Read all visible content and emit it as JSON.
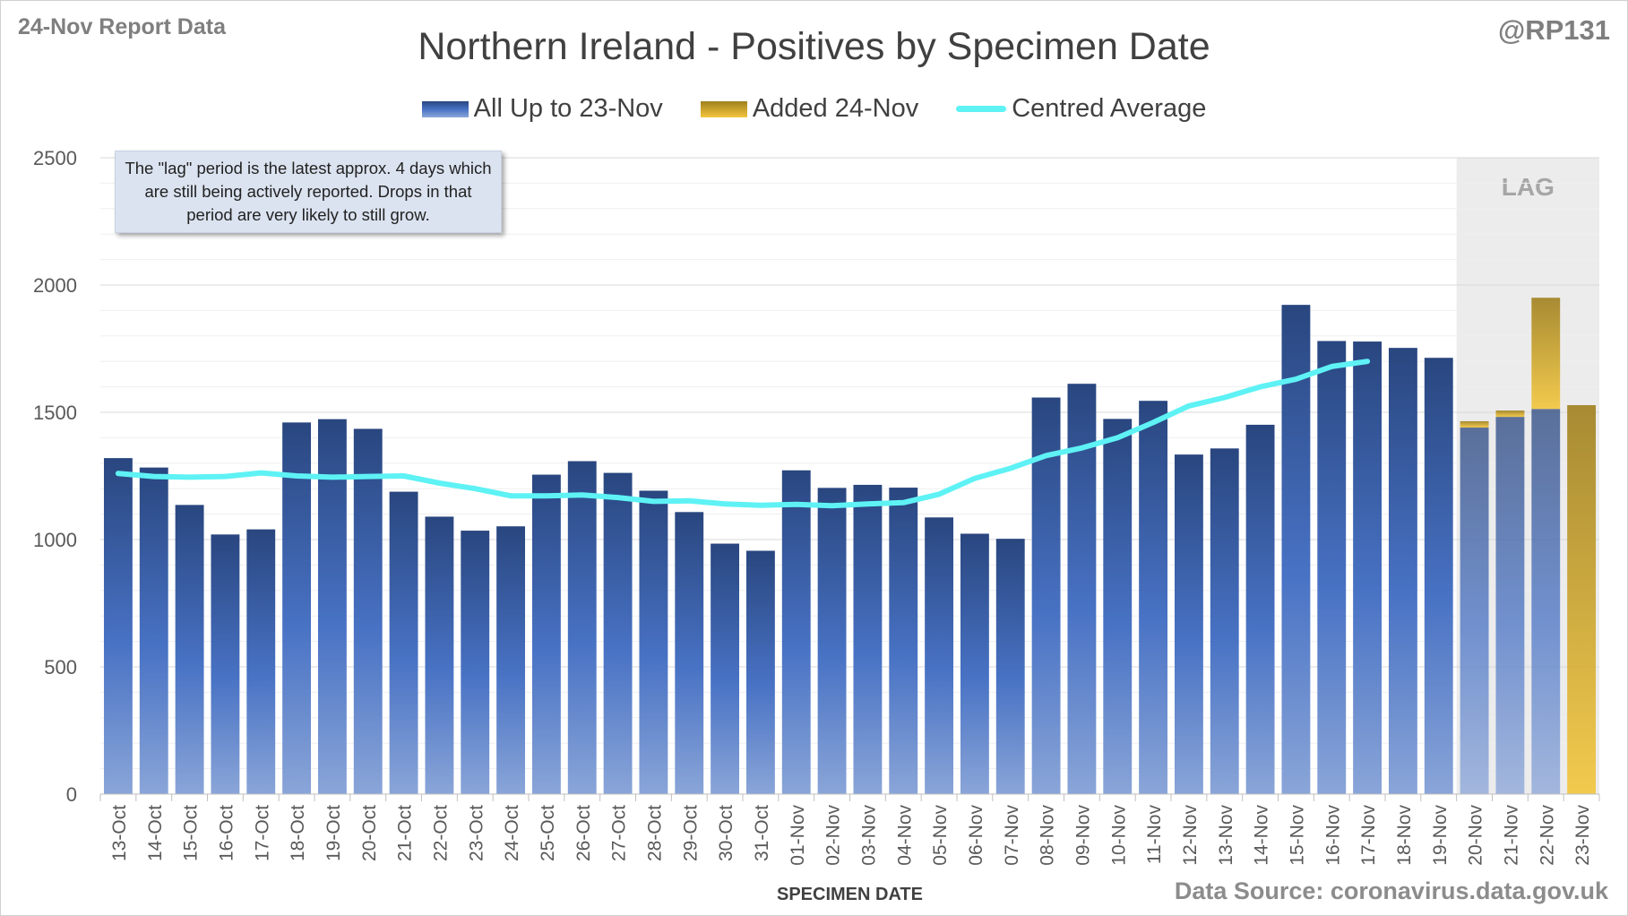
{
  "header": {
    "report_label": "24-Nov Report Data",
    "handle": "@RP131",
    "source": "Data Source: coronavirus.data.gov.uk"
  },
  "note": {
    "text": "The \"lag\" period is the latest approx. 4 days which are still being actively reported. Drops in that period are very likely to still grow."
  },
  "colors": {
    "bar_dark": "#29467f",
    "bar_mid": "#4872c4",
    "bar_light": "#8aa5d8",
    "added_dark": "#a0801e",
    "added_light": "#f3c63c",
    "average": "#5ef2f5",
    "lag_shade": "#ececec",
    "grid": "#d9d9d9"
  },
  "chart_data": {
    "type": "bar",
    "title": "Northern Ireland - Positives by Specimen Date",
    "xlabel": "SPECIMEN DATE",
    "ylabel": "",
    "ylim": [
      0,
      2500
    ],
    "yticks": [
      0,
      500,
      1000,
      1500,
      2000,
      2500
    ],
    "grid": true,
    "legend_position": "top",
    "categories": [
      "13-Oct",
      "14-Oct",
      "15-Oct",
      "16-Oct",
      "17-Oct",
      "18-Oct",
      "19-Oct",
      "20-Oct",
      "21-Oct",
      "22-Oct",
      "23-Oct",
      "24-Oct",
      "25-Oct",
      "26-Oct",
      "27-Oct",
      "28-Oct",
      "29-Oct",
      "30-Oct",
      "31-Oct",
      "01-Nov",
      "02-Nov",
      "03-Nov",
      "04-Nov",
      "05-Nov",
      "06-Nov",
      "07-Nov",
      "08-Nov",
      "09-Nov",
      "10-Nov",
      "11-Nov",
      "12-Nov",
      "13-Nov",
      "14-Nov",
      "15-Nov",
      "16-Nov",
      "17-Nov",
      "18-Nov",
      "19-Nov",
      "20-Nov",
      "21-Nov",
      "22-Nov",
      "23-Nov"
    ],
    "series": [
      {
        "name": "All Up to 23-Nov",
        "stacked": true,
        "values": [
          1320,
          1283,
          1136,
          1020,
          1040,
          1460,
          1473,
          1435,
          1188,
          1090,
          1035,
          1052,
          1255,
          1308,
          1262,
          1192,
          1108,
          984,
          956,
          1272,
          1203,
          1215,
          1204,
          1087,
          1023,
          1003,
          1558,
          1612,
          1474,
          1545,
          1334,
          1358,
          1451,
          1922,
          1780,
          1778,
          1753,
          1714,
          1440,
          1482,
          1513,
          0
        ]
      },
      {
        "name": "Added 24-Nov",
        "stacked": true,
        "values": [
          0,
          0,
          0,
          0,
          0,
          0,
          0,
          0,
          0,
          0,
          0,
          0,
          0,
          0,
          0,
          0,
          0,
          0,
          0,
          0,
          0,
          0,
          0,
          0,
          0,
          0,
          0,
          0,
          0,
          0,
          0,
          0,
          0,
          0,
          0,
          0,
          0,
          0,
          25,
          25,
          437,
          1528
        ]
      },
      {
        "name": "Centred Average",
        "type": "line",
        "values": [
          1260,
          1248,
          1245,
          1248,
          1262,
          1250,
          1245,
          1248,
          1250,
          1222,
          1200,
          1172,
          1172,
          1175,
          1165,
          1150,
          1152,
          1140,
          1135,
          1138,
          1133,
          1140,
          1145,
          1178,
          1240,
          1280,
          1330,
          1360,
          1400,
          1460,
          1525,
          1558,
          1600,
          1630,
          1680,
          1700,
          null,
          null,
          null,
          null,
          null,
          null
        ]
      }
    ],
    "lag_region": {
      "label": "LAG",
      "categories": [
        "20-Nov",
        "21-Nov",
        "22-Nov",
        "23-Nov"
      ]
    }
  }
}
